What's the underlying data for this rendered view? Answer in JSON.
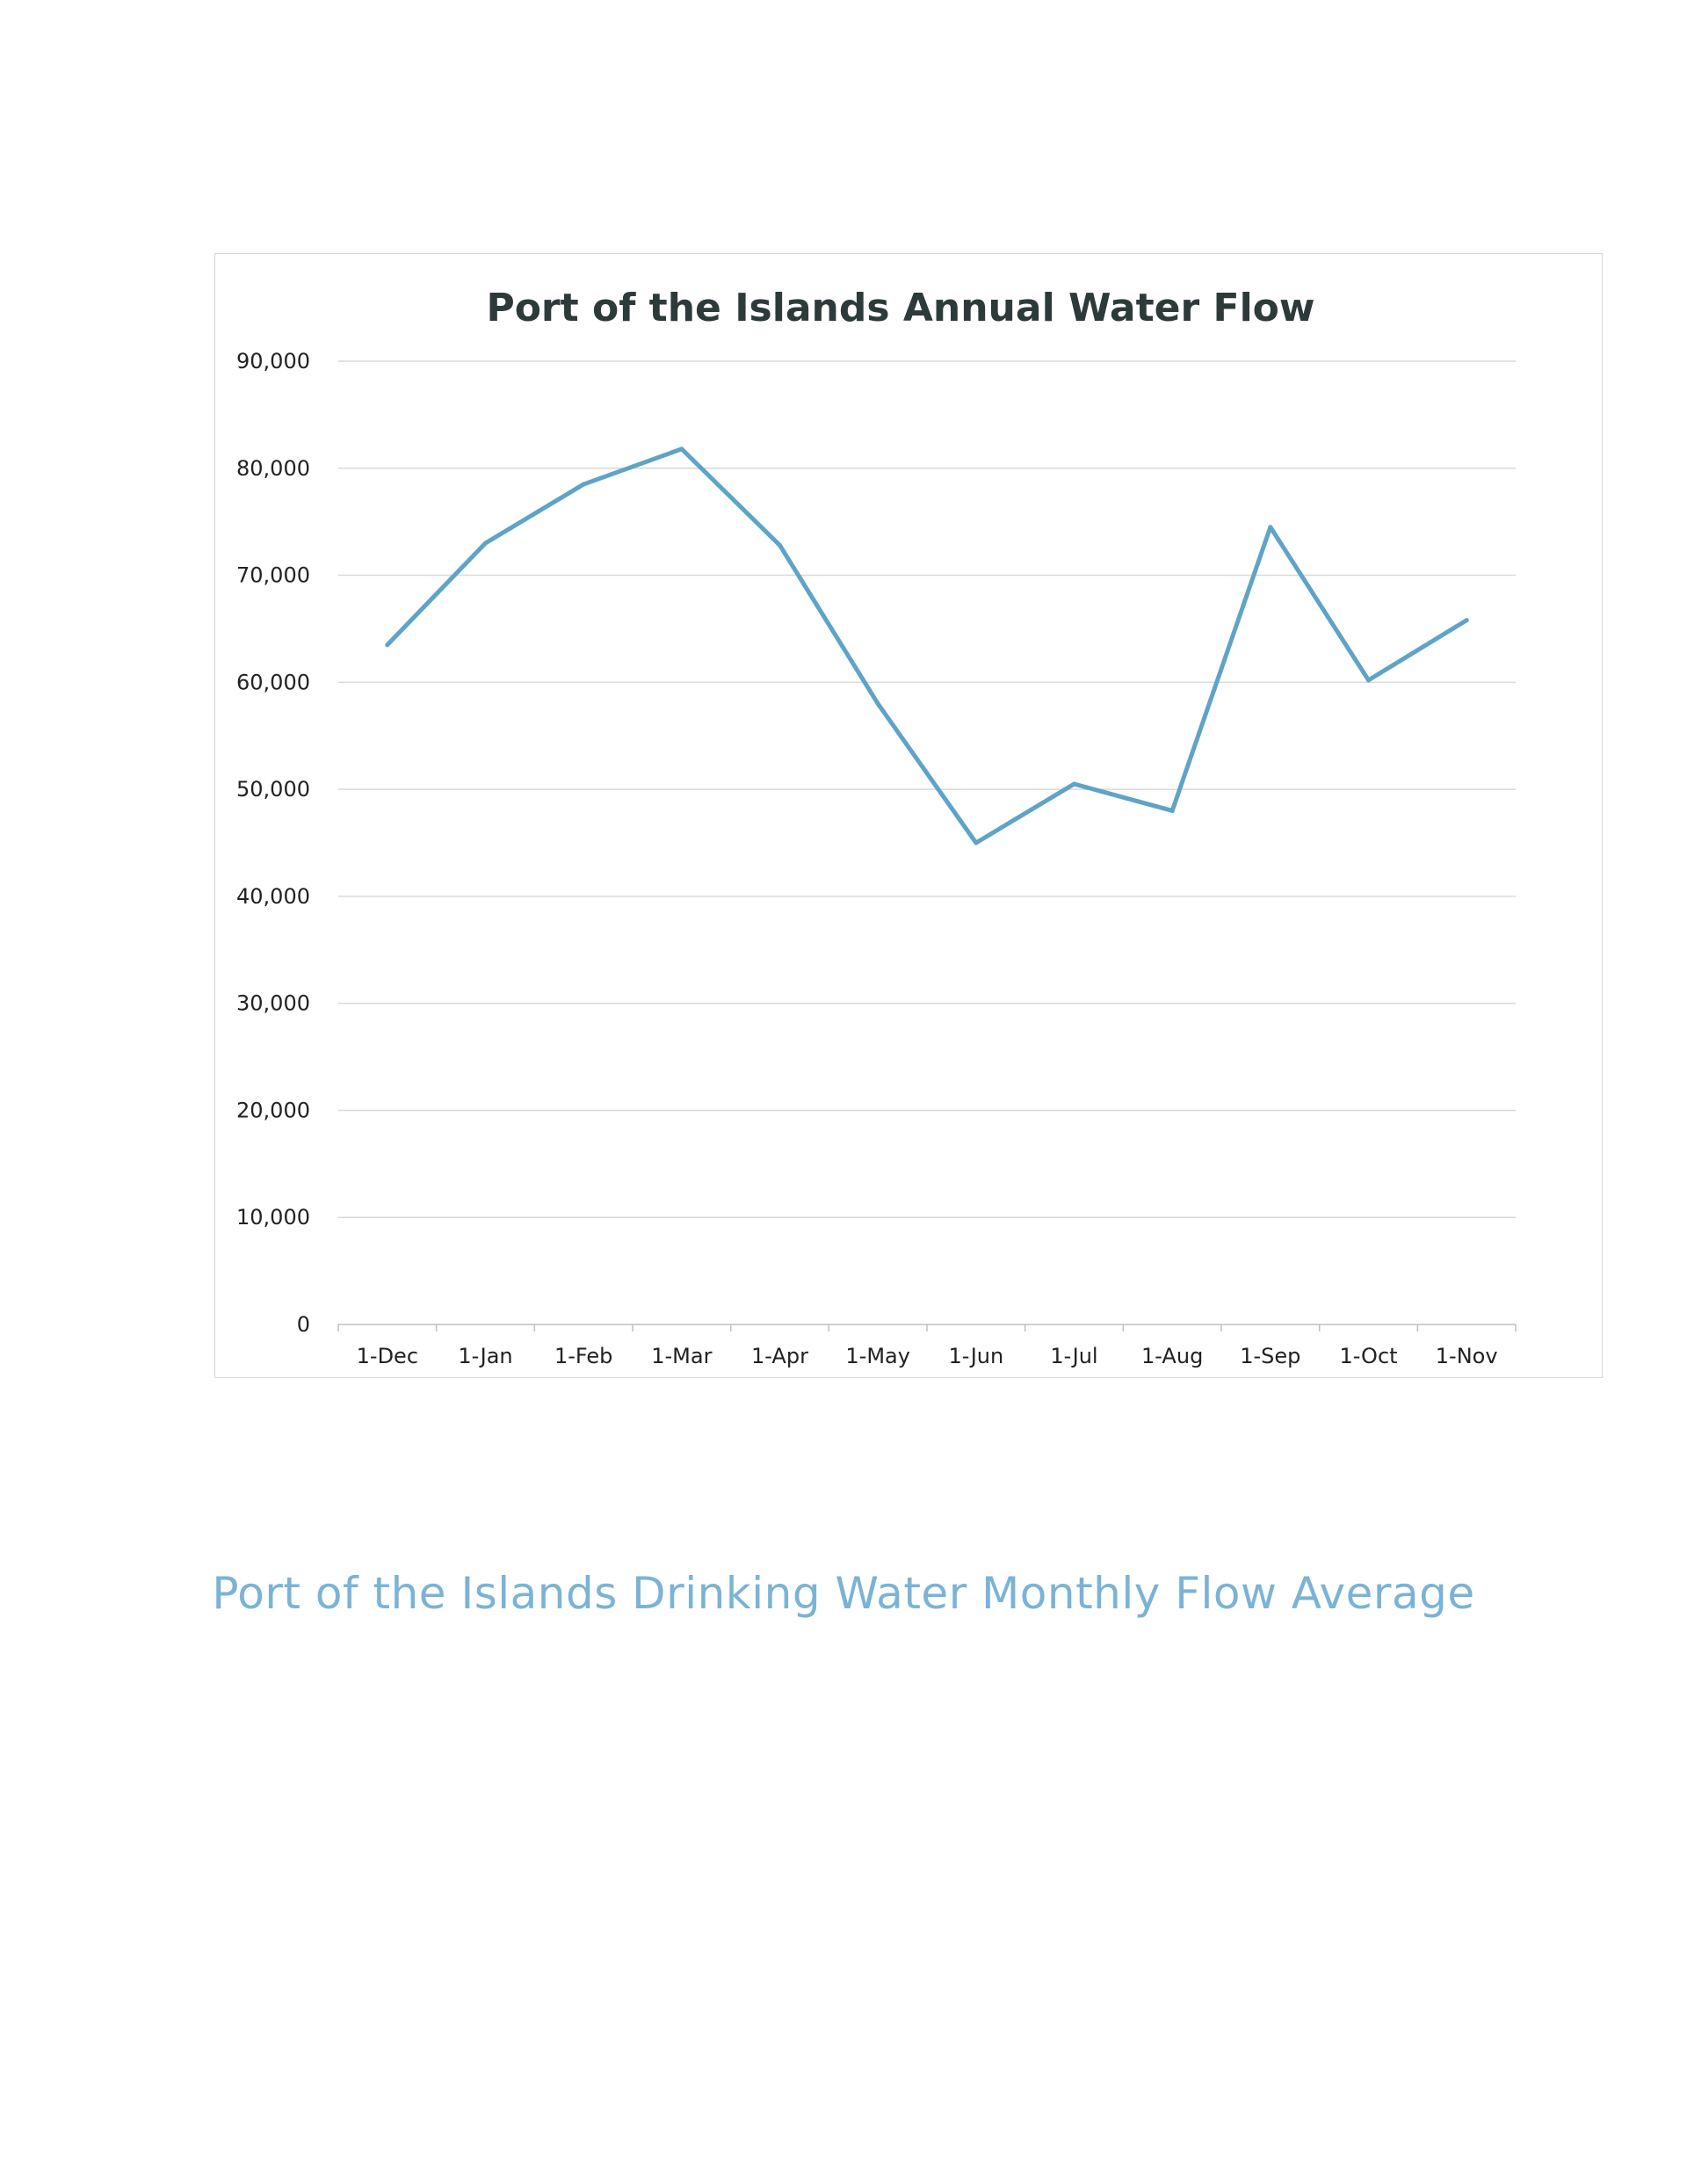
{
  "chart_data": {
    "type": "line",
    "title": "Port of the Islands Annual Water Flow",
    "xlabel": "",
    "ylabel": "",
    "categories": [
      "1-Dec",
      "1-Jan",
      "1-Feb",
      "1-Mar",
      "1-Apr",
      "1-May",
      "1-Jun",
      "1-Jul",
      "1-Aug",
      "1-Sep",
      "1-Oct",
      "1-Nov"
    ],
    "series": [
      {
        "name": "Monthly Flow Average",
        "color": "#5fa3c8",
        "values": [
          63500,
          73000,
          78500,
          81800,
          72800,
          58000,
          45000,
          50500,
          48000,
          74500,
          60200,
          65800
        ]
      }
    ],
    "ylim": [
      0,
      90000
    ],
    "yticks": [
      0,
      10000,
      20000,
      30000,
      40000,
      50000,
      60000,
      70000,
      80000,
      90000
    ],
    "ytick_labels": [
      "0",
      "10,000",
      "20,000",
      "30,000",
      "40,000",
      "50,000",
      "60,000",
      "70,000",
      "80,000",
      "90,000"
    ],
    "grid": true,
    "legend": "none"
  },
  "caption": "Port of the Islands Drinking Water Monthly Flow Average"
}
